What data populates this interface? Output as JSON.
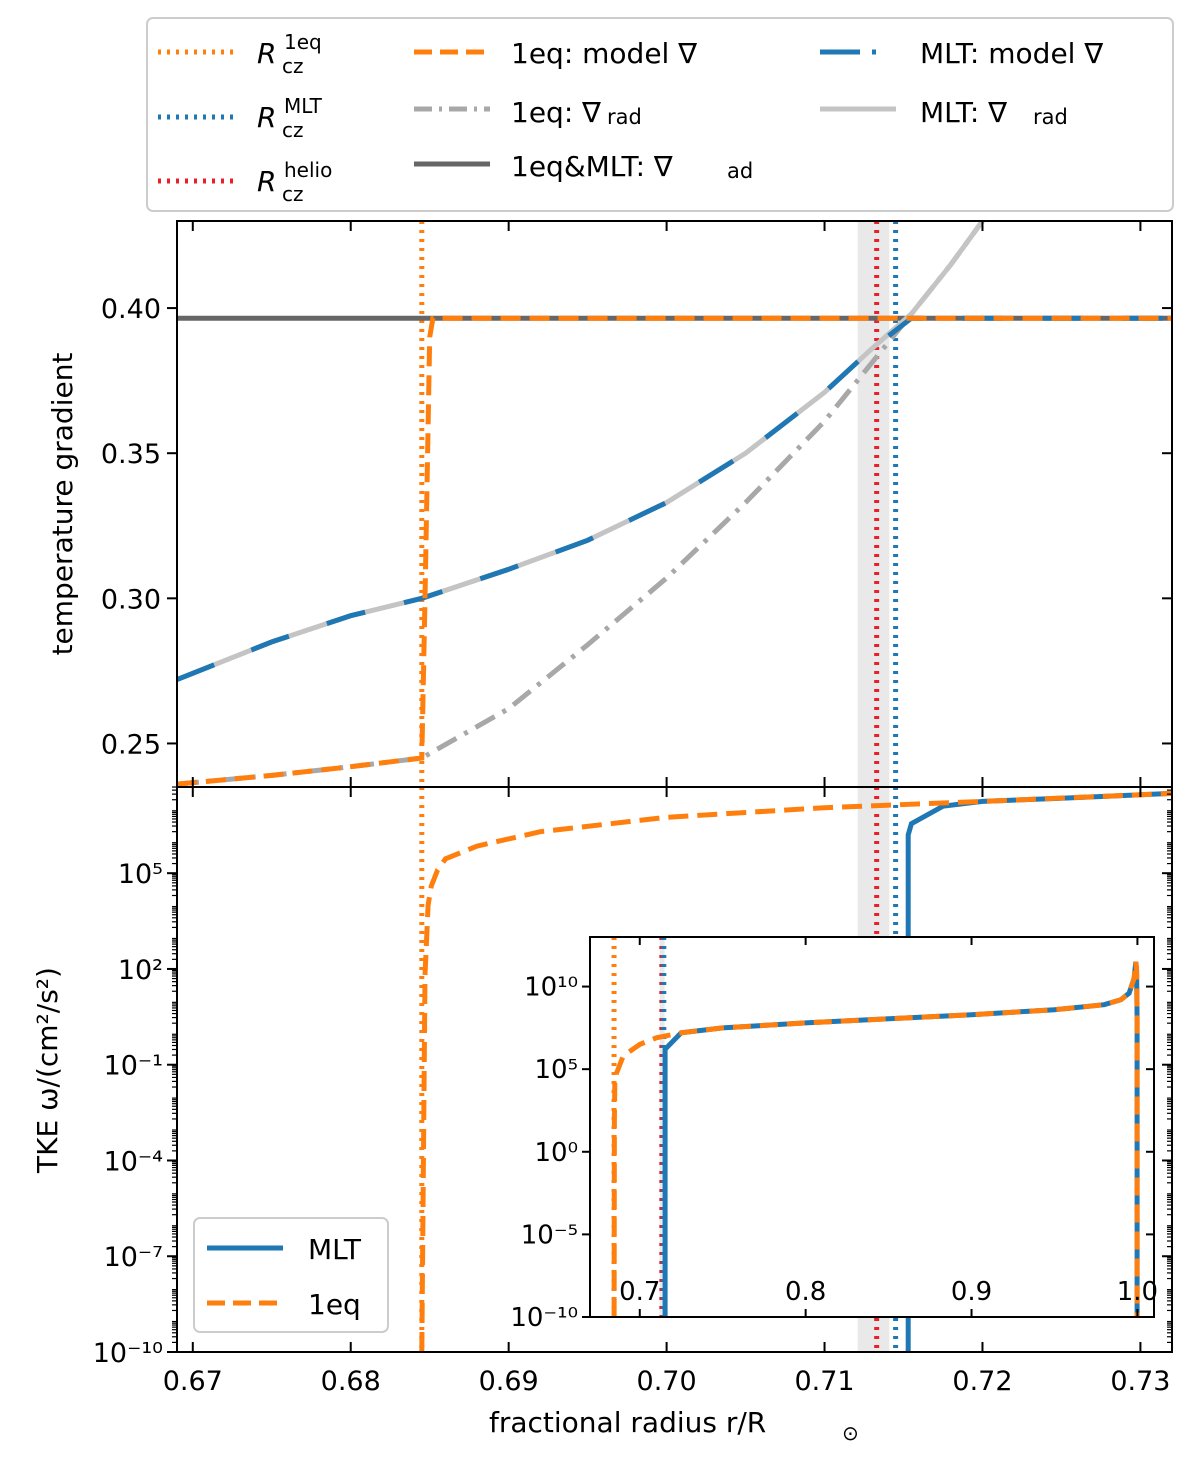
{
  "colors": {
    "orange": "#ff7f0e",
    "blue": "#1f77b4",
    "red": "#e8202a",
    "gray_dark": "#666666",
    "gray_mid": "#a8a8a8",
    "gray_light": "#c4c4c4",
    "band": "#e9e9e9"
  },
  "chart_data": {
    "type": "line",
    "x_axis": {
      "label_text": "fractional radius r/R",
      "label_symbol": "⊙",
      "range": [
        0.669,
        0.732
      ],
      "ticks": [
        0.67,
        0.68,
        0.69,
        0.7,
        0.71,
        0.72,
        0.73
      ],
      "tick_labels": [
        "0.67",
        "0.68",
        "0.69",
        "0.70",
        "0.71",
        "0.72",
        "0.73"
      ]
    },
    "vertical_markers": [
      {
        "key": "R_cz_1eq",
        "x": 0.6845,
        "color": "orange"
      },
      {
        "key": "R_cz_MLT",
        "x": 0.7145,
        "color": "blue"
      },
      {
        "key": "R_cz_helio",
        "x": 0.7133,
        "color": "red"
      }
    ],
    "helio_band": [
      0.7121,
      0.7141
    ],
    "top_panel": {
      "ylabel": "temperature gradient",
      "yrange": [
        0.235,
        0.43
      ],
      "ticks": [
        0.25,
        0.3,
        0.35,
        0.4
      ],
      "tick_labels": [
        "0.25",
        "0.30",
        "0.35",
        "0.40"
      ],
      "grad_ad": 0.3965,
      "grad_rad_mlt": {
        "x": [
          0.669,
          0.675,
          0.68,
          0.6845,
          0.69,
          0.695,
          0.7,
          0.705,
          0.71,
          0.713,
          0.7155,
          0.718,
          0.72
        ],
        "y": [
          0.272,
          0.285,
          0.294,
          0.3,
          0.31,
          0.32,
          0.333,
          0.35,
          0.371,
          0.386,
          0.398,
          0.415,
          0.43
        ]
      },
      "grad_rad_1eq": {
        "x": [
          0.669,
          0.675,
          0.68,
          0.6845,
          0.69,
          0.695,
          0.7,
          0.705,
          0.71,
          0.7155,
          0.718,
          0.72
        ],
        "y": [
          0.236,
          0.239,
          0.242,
          0.245,
          0.262,
          0.284,
          0.307,
          0.333,
          0.361,
          0.398,
          0.415,
          0.43
        ]
      },
      "model_grad_mlt": {
        "x": [
          0.669,
          0.675,
          0.68,
          0.6845,
          0.69,
          0.695,
          0.7,
          0.705,
          0.71,
          0.713,
          0.7155,
          0.732
        ],
        "y": [
          0.272,
          0.285,
          0.294,
          0.3,
          0.31,
          0.32,
          0.333,
          0.35,
          0.371,
          0.386,
          0.3965,
          0.3965
        ]
      },
      "model_grad_1eq": {
        "x": [
          0.669,
          0.675,
          0.68,
          0.6845,
          0.6847,
          0.685,
          0.6852,
          0.732
        ],
        "y": [
          0.236,
          0.239,
          0.242,
          0.245,
          0.3,
          0.39,
          0.3965,
          0.3965
        ]
      }
    },
    "bottom_panel": {
      "ylabel_text": "TKE ω/(cm²/s²)",
      "log_y": true,
      "yrange_log10": [
        -10,
        7.7
      ],
      "ticks_log10": [
        -10,
        -7,
        -4,
        -1,
        2,
        5
      ],
      "tick_labels": [
        "10⁻¹⁰",
        "10⁻⁷",
        "10⁻⁴",
        "10⁻¹",
        "10²",
        "10⁵"
      ],
      "series": [
        {
          "name": "MLT",
          "color": "blue",
          "dash": "solid",
          "x": [
            0.7153,
            0.7153,
            0.7155,
            0.7175,
            0.72,
            0.725,
            0.732
          ],
          "log10_y": [
            -10,
            6.2,
            6.55,
            7.1,
            7.25,
            7.35,
            7.5
          ]
        },
        {
          "name": "1eq",
          "color": "orange",
          "dash": "dashed",
          "x": [
            0.6845,
            0.6847,
            0.6849,
            0.6851,
            0.6855,
            0.686,
            0.688,
            0.692,
            0.7,
            0.71,
            0.72,
            0.732
          ],
          "log10_y": [
            -10,
            1.8,
            4.0,
            4.6,
            5.1,
            5.45,
            5.85,
            6.3,
            6.75,
            7.05,
            7.25,
            7.5
          ]
        }
      ],
      "legend": {
        "placement": "lower left",
        "entries": [
          "MLT",
          "1eq"
        ]
      }
    },
    "inset": {
      "xrange": [
        0.67,
        1.01
      ],
      "xticks": [
        0.7,
        0.8,
        0.9,
        1.0
      ],
      "xtick_labels": [
        "0.7",
        "0.8",
        "0.9",
        "1.0"
      ],
      "yrange_log10": [
        -10,
        13
      ],
      "yticks_log10": [
        -10,
        -5,
        0,
        5,
        10
      ],
      "ytick_labels": [
        "10⁻¹⁰",
        "10⁻⁵",
        "10⁰",
        "10⁵",
        "10¹⁰"
      ],
      "markers": [
        {
          "x": 0.6845,
          "color": "orange"
        },
        {
          "x": 0.7133,
          "color": "red"
        },
        {
          "x": 0.7145,
          "color": "blue"
        }
      ],
      "band": [
        0.712,
        0.715
      ],
      "series": [
        {
          "name": "MLT",
          "color": "blue",
          "dash": "solid",
          "x": [
            0.7153,
            0.7153,
            0.725,
            0.75,
            0.8,
            0.85,
            0.9,
            0.95,
            0.98,
            0.99,
            0.995,
            0.998,
            0.999,
            0.9995,
            0.9998,
            0.9998
          ],
          "log10_y": [
            -10,
            6.2,
            7.2,
            7.5,
            7.8,
            8.05,
            8.3,
            8.6,
            8.9,
            9.2,
            9.6,
            10.5,
            11.5,
            11.0,
            8.0,
            -10
          ]
        },
        {
          "name": "1eq",
          "color": "orange",
          "dash": "dashed",
          "x": [
            0.6845,
            0.6847,
            0.685,
            0.69,
            0.7,
            0.71,
            0.725,
            0.75,
            0.8,
            0.85,
            0.9,
            0.95,
            0.98,
            0.99,
            0.995,
            0.998,
            0.999,
            0.9995,
            0.9998,
            0.9998
          ],
          "log10_y": [
            -10,
            2.0,
            4.5,
            5.8,
            6.5,
            6.9,
            7.2,
            7.5,
            7.8,
            8.05,
            8.3,
            8.6,
            8.9,
            9.2,
            9.6,
            10.5,
            11.5,
            11.0,
            8.0,
            -10
          ]
        }
      ]
    },
    "legend_entries": [
      {
        "id": "r1eq",
        "base": "R",
        "sup": "1eq",
        "sub": "cz",
        "color": "orange",
        "style": "dotted"
      },
      {
        "id": "rmlt",
        "base": "R",
        "sup": "MLT",
        "sub": "cz",
        "color": "blue",
        "style": "dotted"
      },
      {
        "id": "rhelio",
        "base": "R",
        "sup": "helio",
        "sub": "cz",
        "color": "red",
        "style": "dotted"
      },
      {
        "id": "m1eq",
        "text": "1eq: model ∇",
        "color": "orange",
        "style": "dashed"
      },
      {
        "id": "r1eqrad",
        "text": "1eq: ∇",
        "sub": "rad",
        "color": "gray_mid",
        "style": "dashdot"
      },
      {
        "id": "ad",
        "text": "1eq&MLT: ∇",
        "sub": "ad",
        "color": "gray_dark",
        "style": "solid"
      },
      {
        "id": "mmlt",
        "text": "MLT: model ∇",
        "color": "blue",
        "style": "dashdot_blue_orange"
      },
      {
        "id": "mltrad",
        "text": "MLT: ∇",
        "sub": "rad",
        "color": "gray_light",
        "style": "solid"
      }
    ],
    "legend_placement": "top (above panels)"
  }
}
